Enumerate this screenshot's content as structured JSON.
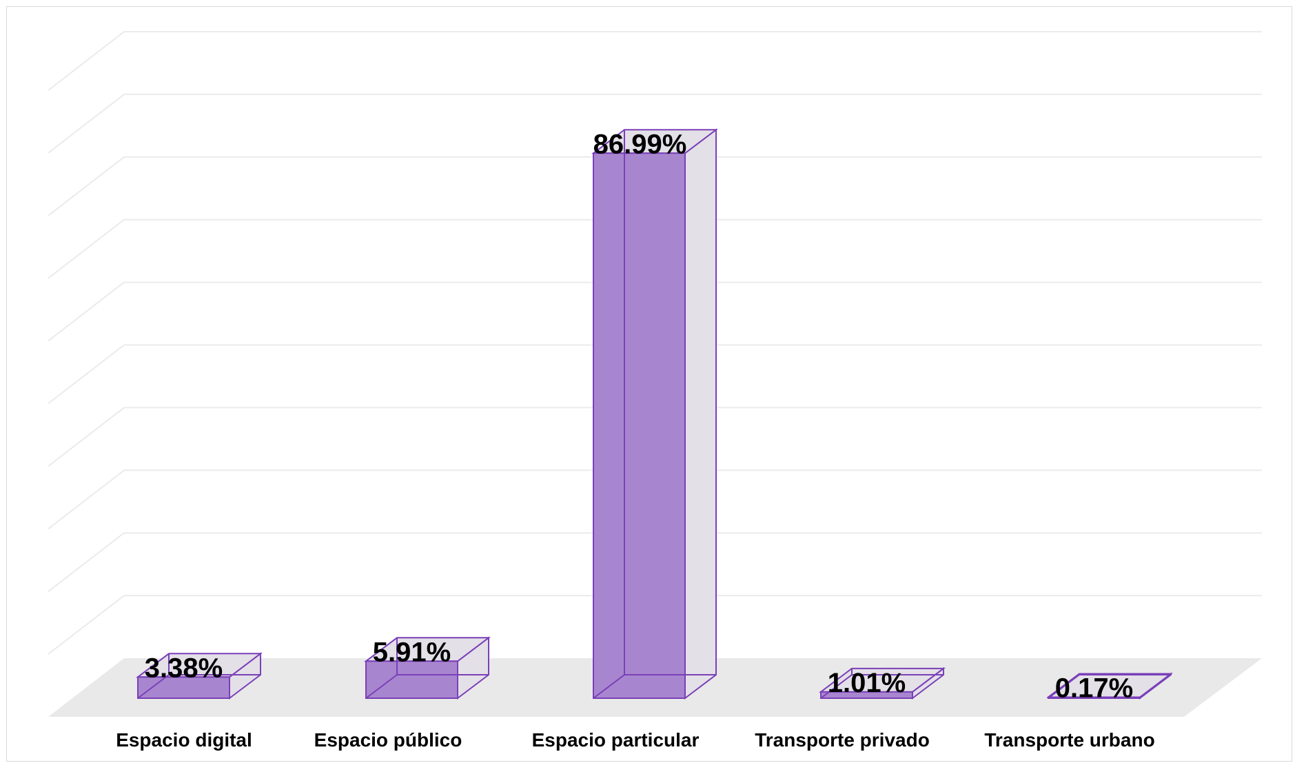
{
  "chart_data": {
    "type": "bar",
    "style": "3d-column",
    "categories": [
      "Espacio digital",
      "Espacio público",
      "Espacio particular",
      "Transporte privado",
      "Transporte urbano"
    ],
    "values": [
      3.38,
      5.91,
      86.99,
      1.01,
      0.17
    ],
    "data_labels": [
      "3.38%",
      "5.91%",
      "86.99%",
      "1.01%",
      "0.17%"
    ],
    "title": "",
    "xlabel": "",
    "ylabel": "",
    "ylim": [
      0,
      100
    ],
    "grid": true,
    "legend": "none",
    "colors": {
      "bar_front": "#a886cf",
      "bar_edge": "#7a3fb8",
      "bar_side": "#e3e0e8",
      "floor": "#e9e9e9",
      "gridline": "#ebebeb"
    }
  }
}
